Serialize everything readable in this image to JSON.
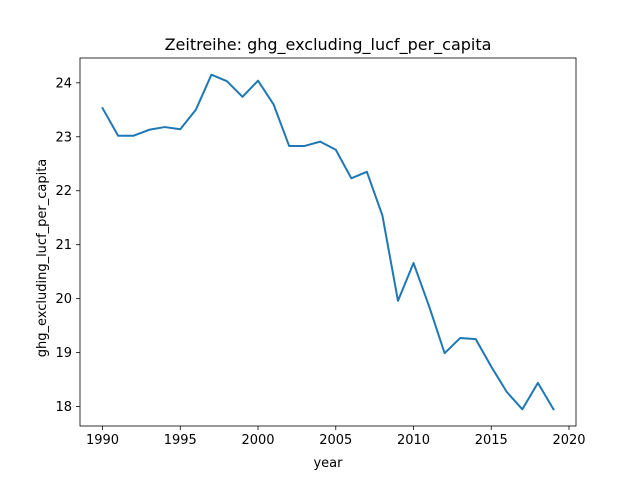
{
  "chart_data": {
    "type": "line",
    "title": "Zeitreihe: ghg_excluding_lucf_per_capita",
    "xlabel": "year",
    "ylabel": "ghg_excluding_lucf_per_capita",
    "xlim": [
      1988.55,
      2020.45
    ],
    "ylim": [
      17.64,
      24.46
    ],
    "xticks": [
      1990,
      1995,
      2000,
      2005,
      2010,
      2015,
      2020
    ],
    "yticks": [
      18,
      19,
      20,
      21,
      22,
      23,
      24
    ],
    "grid": false,
    "series": [
      {
        "color": "#1f77b4",
        "x": [
          1990,
          1991,
          1992,
          1993,
          1994,
          1995,
          1996,
          1997,
          1998,
          1999,
          2000,
          2001,
          2002,
          2003,
          2004,
          2005,
          2006,
          2007,
          2008,
          2009,
          2010,
          2011,
          2012,
          2013,
          2014,
          2015,
          2016,
          2017,
          2018,
          2019
        ],
        "y": [
          23.53,
          23.02,
          23.02,
          23.13,
          23.18,
          23.14,
          23.5,
          24.15,
          24.03,
          23.74,
          24.04,
          23.6,
          22.83,
          22.83,
          22.91,
          22.76,
          22.23,
          22.35,
          21.54,
          19.96,
          20.66,
          19.86,
          18.99,
          19.27,
          19.25,
          18.74,
          18.27,
          17.95,
          18.44,
          17.95
        ]
      }
    ]
  }
}
